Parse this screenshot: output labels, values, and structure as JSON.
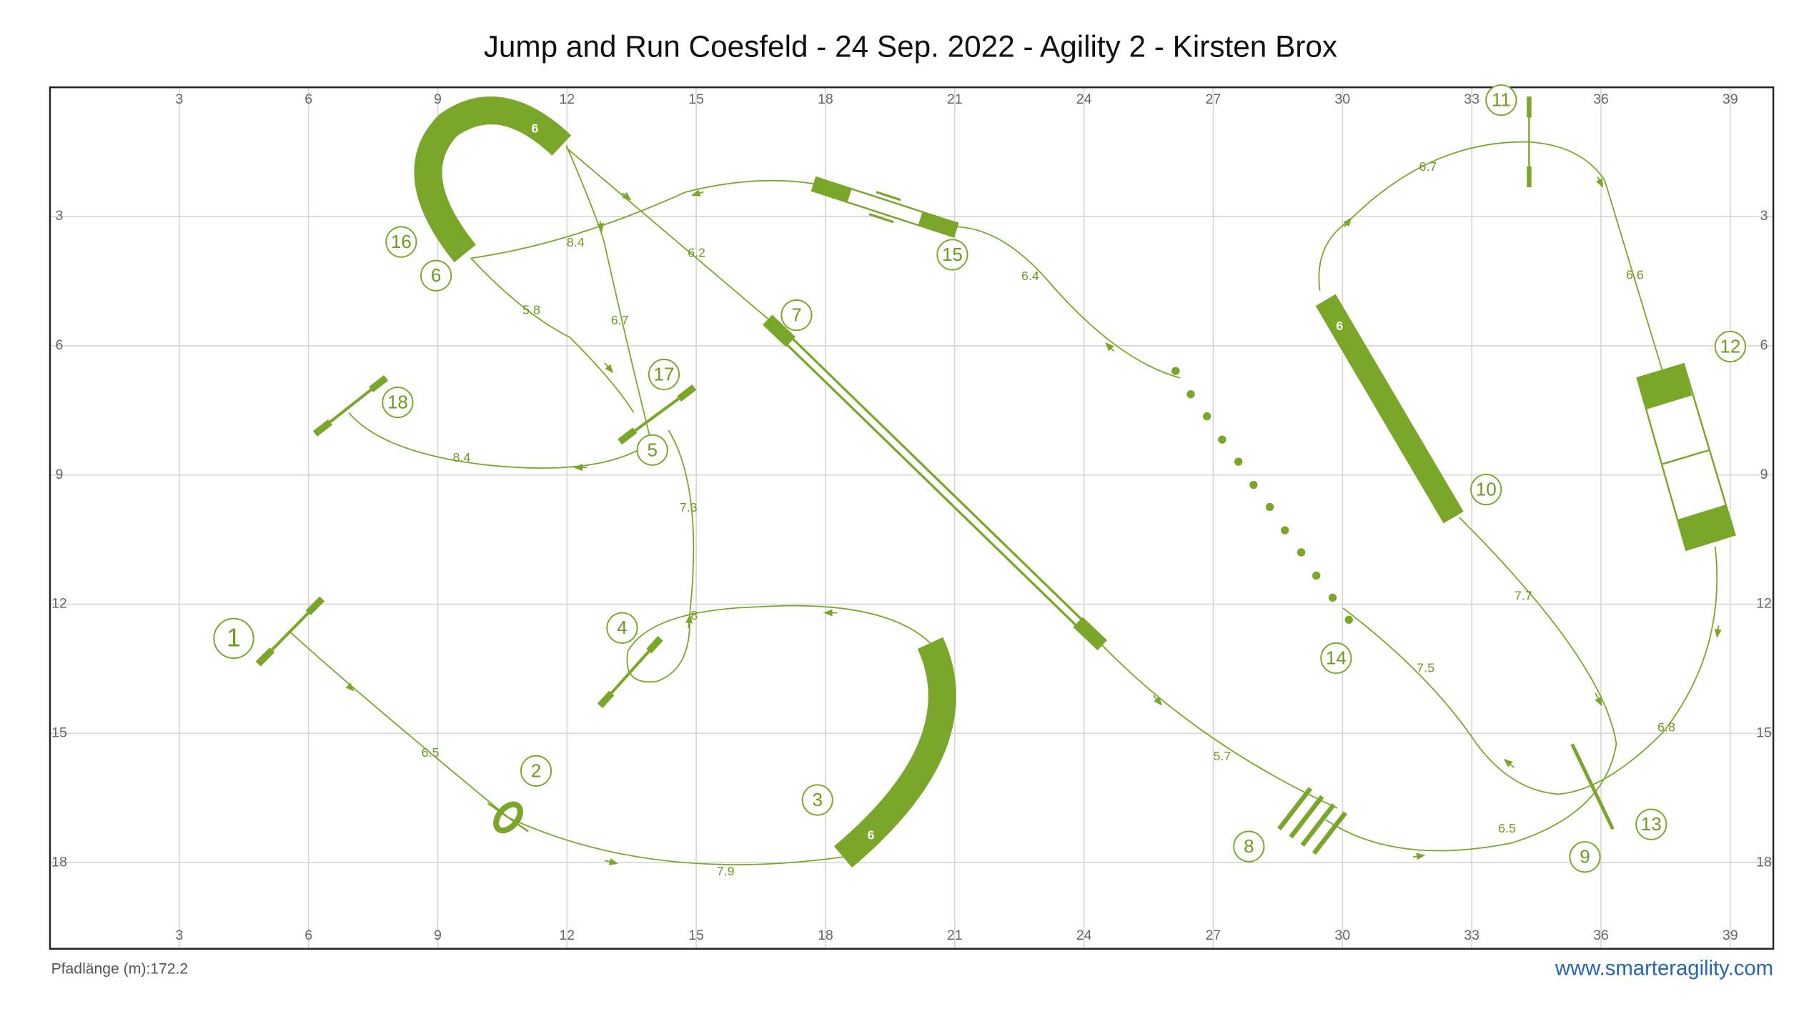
{
  "header": {
    "title": "Jump and Run Coesfeld - 24 Sep. 2022 - Agility 2 - Kirsten Brox"
  },
  "grid": {
    "xticks": [
      3,
      6,
      9,
      12,
      15,
      18,
      21,
      24,
      27,
      30,
      33,
      36,
      39
    ],
    "yticks": [
      3,
      6,
      9,
      12,
      15,
      18
    ]
  },
  "course": {
    "numbers": [
      "1",
      "2",
      "3",
      "4",
      "5",
      "6",
      "7",
      "8",
      "9",
      "10",
      "11",
      "12",
      "13",
      "14",
      "15",
      "16",
      "17",
      "18"
    ],
    "distances": [
      "6.5",
      "7.9",
      "8",
      "7.3",
      "6.7",
      "5.8",
      "8.4",
      "6.2",
      "5.7",
      "6.5",
      "6.8",
      "7.5",
      "7.7",
      "6.7",
      "6.6",
      "6.4",
      "8.4"
    ],
    "tunnel_lengths": [
      "6",
      "6",
      "6"
    ]
  },
  "footer": {
    "path_length": "Pfadlänge (m):172.2",
    "site": "www.smarteragility.com"
  }
}
